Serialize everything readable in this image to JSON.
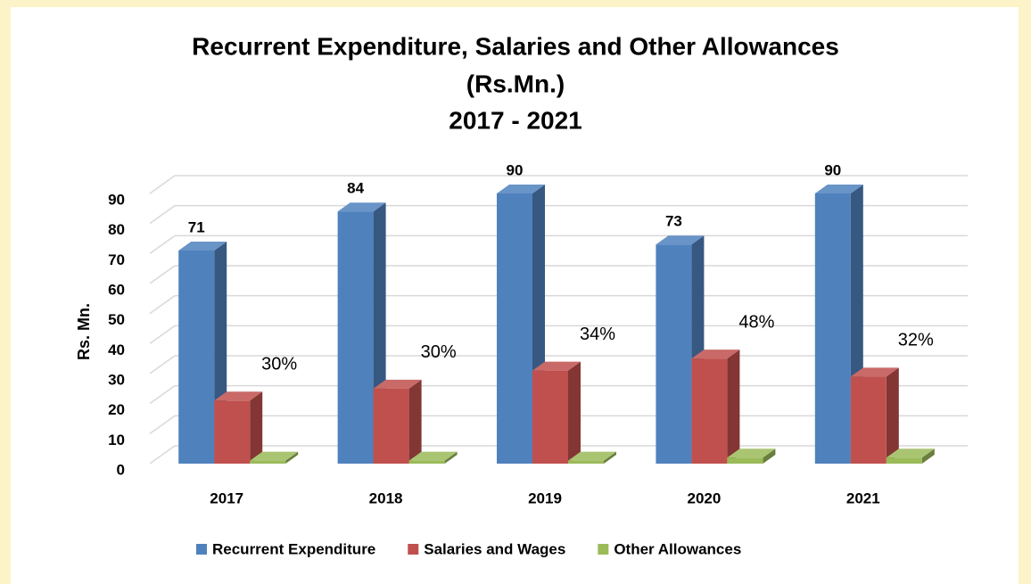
{
  "chart_data": {
    "type": "bar3d",
    "title": [
      "Recurrent Expenditure, Salaries and Other Allowances",
      "(Rs.Mn.)",
      "2017 - 2021"
    ],
    "y_label": "Rs. Mn.",
    "categories": [
      "2017",
      "2018",
      "2019",
      "2020",
      "2021"
    ],
    "series": [
      {
        "name": "Recurrent Expenditure",
        "color": "#4f81bd",
        "values": [
          71,
          84,
          90,
          73,
          90
        ]
      },
      {
        "name": "Salaries and Wages",
        "color": "#c0504d",
        "values": [
          21,
          25,
          31,
          35,
          29
        ],
        "share_labels": [
          "30%",
          "30%",
          "34%",
          "48%",
          "32%"
        ]
      },
      {
        "name": "Other Allowances",
        "color": "#9bbb59",
        "values": [
          1,
          1,
          1,
          2,
          2
        ]
      }
    ],
    "ylim": [
      0,
      90
    ],
    "yticks": [
      0,
      10,
      20,
      30,
      40,
      50,
      60,
      70,
      80,
      90
    ],
    "grid": true,
    "legend": "bottom"
  }
}
